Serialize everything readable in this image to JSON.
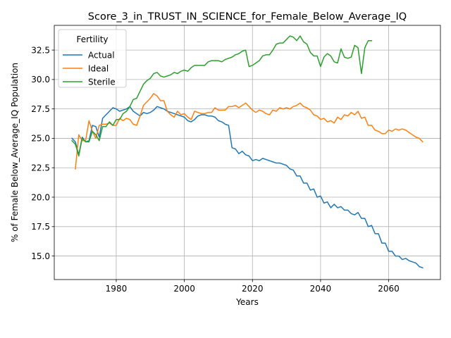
{
  "chart_data": {
    "type": "line",
    "title": "Score_3_in_TRUST_IN_SCIENCE_for_Female_Below_Average_IQ",
    "xlabel": "Years",
    "ylabel": "% of Female Below_Average_IQ Population",
    "xlim": [
      1961.8,
      2075.2
    ],
    "ylim": [
      13.0,
      34.6
    ],
    "x_ticks": [
      1980,
      2000,
      2020,
      2040,
      2060
    ],
    "y_ticks": [
      15.0,
      17.5,
      20.0,
      22.5,
      25.0,
      27.5,
      30.0,
      32.5
    ],
    "x_tick_labels": [
      "1980",
      "2000",
      "2020",
      "2040",
      "2060"
    ],
    "y_tick_labels": [
      "15.0",
      "17.5",
      "20.0",
      "22.5",
      "25.0",
      "27.5",
      "30.0",
      "32.5"
    ],
    "grid": true,
    "legend_title": "Fertility",
    "legend_position": "upper-left",
    "series": [
      {
        "name": "Actual",
        "color": "#1f77b4",
        "points": [
          [
            1967,
            25.0
          ],
          [
            1968,
            24.7
          ],
          [
            1969,
            23.6
          ],
          [
            1970,
            25.1
          ],
          [
            1971,
            24.7
          ],
          [
            1972,
            24.8
          ],
          [
            1973,
            26.1
          ],
          [
            1974,
            26.0
          ],
          [
            1975,
            25.1
          ],
          [
            1976,
            26.7
          ],
          [
            1977,
            27.0
          ],
          [
            1978,
            27.3
          ],
          [
            1979,
            27.6
          ],
          [
            1980,
            27.5
          ],
          [
            1981,
            27.3
          ],
          [
            1982,
            27.4
          ],
          [
            1983,
            27.5
          ],
          [
            1984,
            27.7
          ],
          [
            1985,
            27.3
          ],
          [
            1986,
            27.1
          ],
          [
            1987,
            26.9
          ],
          [
            1988,
            27.2
          ],
          [
            1989,
            27.1
          ],
          [
            1990,
            27.2
          ],
          [
            1991,
            27.4
          ],
          [
            1992,
            27.7
          ],
          [
            1993,
            27.6
          ],
          [
            1994,
            27.5
          ],
          [
            1995,
            27.3
          ],
          [
            1996,
            27.2
          ],
          [
            1997,
            27.1
          ],
          [
            1998,
            27.0
          ],
          [
            1999,
            26.9
          ],
          [
            2000,
            26.8
          ],
          [
            2001,
            26.5
          ],
          [
            2002,
            26.4
          ],
          [
            2003,
            26.6
          ],
          [
            2004,
            26.9
          ],
          [
            2005,
            27.0
          ],
          [
            2006,
            27.0
          ],
          [
            2007,
            26.9
          ],
          [
            2008,
            26.9
          ],
          [
            2009,
            26.8
          ],
          [
            2010,
            26.5
          ],
          [
            2011,
            26.4
          ],
          [
            2012,
            26.2
          ],
          [
            2013,
            26.1
          ],
          [
            2014,
            24.2
          ],
          [
            2015,
            24.1
          ],
          [
            2016,
            23.7
          ],
          [
            2017,
            23.9
          ],
          [
            2018,
            23.6
          ],
          [
            2019,
            23.5
          ],
          [
            2020,
            23.1
          ],
          [
            2021,
            23.2
          ],
          [
            2022,
            23.1
          ],
          [
            2023,
            23.3
          ],
          [
            2024,
            23.2
          ],
          [
            2025,
            23.1
          ],
          [
            2026,
            23.0
          ],
          [
            2027,
            22.9
          ],
          [
            2028,
            22.9
          ],
          [
            2029,
            22.8
          ],
          [
            2030,
            22.7
          ],
          [
            2031,
            22.4
          ],
          [
            2032,
            22.3
          ],
          [
            2033,
            21.8
          ],
          [
            2034,
            21.8
          ],
          [
            2035,
            21.2
          ],
          [
            2036,
            21.2
          ],
          [
            2037,
            20.6
          ],
          [
            2038,
            20.7
          ],
          [
            2039,
            20.0
          ],
          [
            2040,
            20.1
          ],
          [
            2041,
            19.5
          ],
          [
            2042,
            19.6
          ],
          [
            2043,
            19.1
          ],
          [
            2044,
            19.4
          ],
          [
            2045,
            19.1
          ],
          [
            2046,
            19.2
          ],
          [
            2047,
            18.9
          ],
          [
            2048,
            18.9
          ],
          [
            2049,
            18.6
          ],
          [
            2050,
            18.5
          ],
          [
            2051,
            18.7
          ],
          [
            2052,
            18.2
          ],
          [
            2053,
            18.2
          ],
          [
            2054,
            17.5
          ],
          [
            2055,
            17.6
          ],
          [
            2056,
            16.9
          ],
          [
            2057,
            16.9
          ],
          [
            2058,
            16.1
          ],
          [
            2059,
            16.1
          ],
          [
            2060,
            15.4
          ],
          [
            2061,
            15.4
          ],
          [
            2062,
            15.0
          ],
          [
            2063,
            15.0
          ],
          [
            2064,
            14.7
          ],
          [
            2065,
            14.8
          ],
          [
            2066,
            14.6
          ],
          [
            2067,
            14.5
          ],
          [
            2068,
            14.4
          ],
          [
            2069,
            14.1
          ],
          [
            2070,
            14.0
          ]
        ]
      },
      {
        "name": "Ideal",
        "color": "#ff7f0e",
        "points": [
          [
            1968,
            22.4
          ],
          [
            1969,
            25.3
          ],
          [
            1970,
            24.8
          ],
          [
            1971,
            24.8
          ],
          [
            1972,
            26.5
          ],
          [
            1973,
            25.6
          ],
          [
            1974,
            25.0
          ],
          [
            1975,
            26.1
          ],
          [
            1976,
            26.2
          ],
          [
            1977,
            26.2
          ],
          [
            1978,
            26.3
          ],
          [
            1979,
            26.1
          ],
          [
            1980,
            26.1
          ],
          [
            1981,
            26.7
          ],
          [
            1982,
            26.5
          ],
          [
            1983,
            26.7
          ],
          [
            1984,
            26.6
          ],
          [
            1985,
            26.2
          ],
          [
            1986,
            26.1
          ],
          [
            1987,
            26.9
          ],
          [
            1988,
            27.8
          ],
          [
            1989,
            28.1
          ],
          [
            1990,
            28.4
          ],
          [
            1991,
            28.8
          ],
          [
            1992,
            28.6
          ],
          [
            1993,
            28.2
          ],
          [
            1994,
            28.2
          ],
          [
            1995,
            27.3
          ],
          [
            1996,
            27.0
          ],
          [
            1997,
            26.8
          ],
          [
            1998,
            27.3
          ],
          [
            1999,
            27.0
          ],
          [
            2000,
            27.1
          ],
          [
            2001,
            26.8
          ],
          [
            2002,
            26.6
          ],
          [
            2003,
            27.3
          ],
          [
            2004,
            27.2
          ],
          [
            2005,
            27.1
          ],
          [
            2006,
            27.1
          ],
          [
            2007,
            27.2
          ],
          [
            2008,
            27.2
          ],
          [
            2009,
            27.6
          ],
          [
            2010,
            27.4
          ],
          [
            2011,
            27.4
          ],
          [
            2012,
            27.4
          ],
          [
            2013,
            27.7
          ],
          [
            2014,
            27.7
          ],
          [
            2015,
            27.8
          ],
          [
            2016,
            27.6
          ],
          [
            2017,
            27.8
          ],
          [
            2018,
            28.0
          ],
          [
            2019,
            27.7
          ],
          [
            2020,
            27.4
          ],
          [
            2021,
            27.2
          ],
          [
            2022,
            27.4
          ],
          [
            2023,
            27.3
          ],
          [
            2024,
            27.1
          ],
          [
            2025,
            27.0
          ],
          [
            2026,
            27.4
          ],
          [
            2027,
            27.3
          ],
          [
            2028,
            27.6
          ],
          [
            2029,
            27.5
          ],
          [
            2030,
            27.6
          ],
          [
            2031,
            27.5
          ],
          [
            2032,
            27.7
          ],
          [
            2033,
            27.8
          ],
          [
            2034,
            28.0
          ],
          [
            2035,
            27.7
          ],
          [
            2036,
            27.6
          ],
          [
            2037,
            27.4
          ],
          [
            2038,
            27.0
          ],
          [
            2039,
            26.9
          ],
          [
            2040,
            26.6
          ],
          [
            2041,
            26.7
          ],
          [
            2042,
            26.4
          ],
          [
            2043,
            26.5
          ],
          [
            2044,
            26.3
          ],
          [
            2045,
            26.8
          ],
          [
            2046,
            26.6
          ],
          [
            2047,
            27.0
          ],
          [
            2048,
            26.9
          ],
          [
            2049,
            27.2
          ],
          [
            2050,
            27.0
          ],
          [
            2051,
            27.3
          ],
          [
            2052,
            26.7
          ],
          [
            2053,
            26.8
          ],
          [
            2054,
            26.1
          ],
          [
            2055,
            26.1
          ],
          [
            2056,
            25.7
          ],
          [
            2057,
            25.6
          ],
          [
            2058,
            25.4
          ],
          [
            2059,
            25.4
          ],
          [
            2060,
            25.7
          ],
          [
            2061,
            25.6
          ],
          [
            2062,
            25.8
          ],
          [
            2063,
            25.7
          ],
          [
            2064,
            25.8
          ],
          [
            2065,
            25.7
          ],
          [
            2066,
            25.5
          ],
          [
            2067,
            25.3
          ],
          [
            2068,
            25.1
          ],
          [
            2069,
            25.0
          ],
          [
            2070,
            24.7
          ]
        ]
      },
      {
        "name": "Sterile",
        "color": "#2ca02c",
        "points": [
          [
            1967,
            24.8
          ],
          [
            1968,
            24.5
          ],
          [
            1969,
            23.5
          ],
          [
            1970,
            25.0
          ],
          [
            1971,
            24.7
          ],
          [
            1972,
            24.7
          ],
          [
            1973,
            25.6
          ],
          [
            1974,
            25.3
          ],
          [
            1975,
            24.8
          ],
          [
            1976,
            26.0
          ],
          [
            1977,
            26.0
          ],
          [
            1978,
            26.4
          ],
          [
            1979,
            26.1
          ],
          [
            1980,
            26.6
          ],
          [
            1981,
            26.6
          ],
          [
            1982,
            27.1
          ],
          [
            1983,
            27.3
          ],
          [
            1984,
            27.7
          ],
          [
            1985,
            28.3
          ],
          [
            1986,
            28.4
          ],
          [
            1987,
            29.0
          ],
          [
            1988,
            29.6
          ],
          [
            1989,
            29.9
          ],
          [
            1990,
            30.1
          ],
          [
            1991,
            30.5
          ],
          [
            1992,
            30.6
          ],
          [
            1993,
            30.3
          ],
          [
            1994,
            30.2
          ],
          [
            1995,
            30.3
          ],
          [
            1996,
            30.4
          ],
          [
            1997,
            30.6
          ],
          [
            1998,
            30.5
          ],
          [
            1999,
            30.7
          ],
          [
            2000,
            30.8
          ],
          [
            2001,
            30.7
          ],
          [
            2002,
            31.0
          ],
          [
            2003,
            31.2
          ],
          [
            2004,
            31.2
          ],
          [
            2005,
            31.2
          ],
          [
            2006,
            31.2
          ],
          [
            2007,
            31.5
          ],
          [
            2008,
            31.6
          ],
          [
            2009,
            31.6
          ],
          [
            2010,
            31.6
          ],
          [
            2011,
            31.5
          ],
          [
            2012,
            31.7
          ],
          [
            2013,
            31.8
          ],
          [
            2014,
            31.9
          ],
          [
            2015,
            32.1
          ],
          [
            2016,
            32.2
          ],
          [
            2017,
            32.4
          ],
          [
            2018,
            32.5
          ],
          [
            2019,
            31.1
          ],
          [
            2020,
            31.2
          ],
          [
            2021,
            31.4
          ],
          [
            2022,
            31.6
          ],
          [
            2023,
            32.0
          ],
          [
            2024,
            32.1
          ],
          [
            2025,
            32.1
          ],
          [
            2026,
            32.5
          ],
          [
            2027,
            33.0
          ],
          [
            2028,
            33.1
          ],
          [
            2029,
            33.1
          ],
          [
            2030,
            33.4
          ],
          [
            2031,
            33.7
          ],
          [
            2032,
            33.6
          ],
          [
            2033,
            33.3
          ],
          [
            2034,
            33.7
          ],
          [
            2035,
            33.2
          ],
          [
            2036,
            33.0
          ],
          [
            2037,
            32.3
          ],
          [
            2038,
            32.0
          ],
          [
            2039,
            32.0
          ],
          [
            2040,
            31.1
          ],
          [
            2041,
            31.9
          ],
          [
            2042,
            32.2
          ],
          [
            2043,
            32.0
          ],
          [
            2044,
            31.5
          ],
          [
            2045,
            31.4
          ],
          [
            2046,
            32.6
          ],
          [
            2047,
            31.9
          ],
          [
            2048,
            31.8
          ],
          [
            2049,
            31.9
          ],
          [
            2050,
            32.9
          ],
          [
            2051,
            32.7
          ],
          [
            2052,
            30.5
          ],
          [
            2053,
            32.7
          ],
          [
            2054,
            33.3
          ],
          [
            2055,
            33.3
          ]
        ]
      }
    ]
  }
}
